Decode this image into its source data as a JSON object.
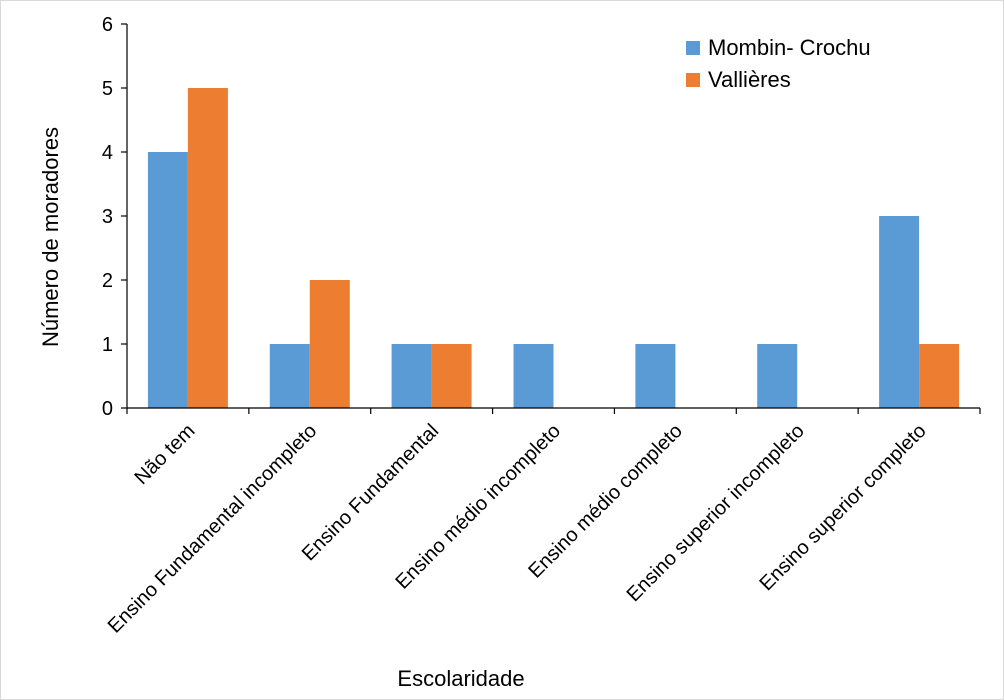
{
  "chart_data": {
    "type": "bar",
    "title": "",
    "xlabel": "Escolaridade",
    "ylabel": "Número de moradores",
    "categories": [
      "Não tem",
      "Ensino Fundamental incompleto",
      "Ensino Fundamental",
      "Ensino médio incompleto",
      "Ensino médio completo",
      "Ensino superior incompleto",
      "Ensino superior completo"
    ],
    "series": [
      {
        "name": "Mombin- Crochu",
        "color": "#5b9bd5",
        "values": [
          4,
          1,
          1,
          1,
          1,
          1,
          3
        ]
      },
      {
        "name": "Vallières",
        "color": "#ed7d31",
        "values": [
          5,
          2,
          1,
          0,
          0,
          0,
          1
        ]
      }
    ],
    "ylim": [
      0,
      6
    ],
    "yticks": [
      "0",
      "1",
      "2",
      "3",
      "4",
      "5",
      "6"
    ],
    "grid": false,
    "legend_position": "top-right"
  }
}
